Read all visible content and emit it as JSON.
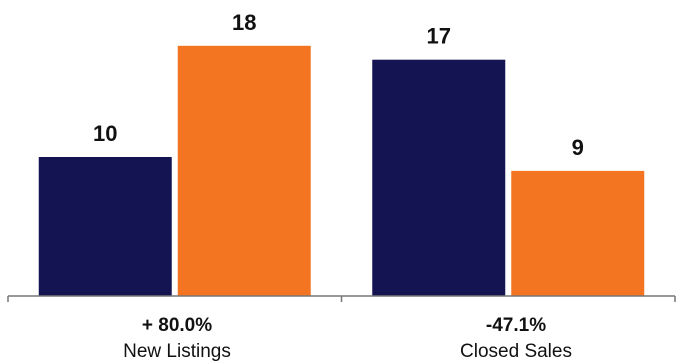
{
  "chart_data": {
    "type": "bar",
    "categories": [
      "New Listings",
      "Closed Sales"
    ],
    "change_labels": [
      "+ 80.0%",
      "-47.1%"
    ],
    "series": [
      {
        "values": [
          10,
          17
        ],
        "color": "#141452"
      },
      {
        "values": [
          18,
          9
        ],
        "color": "#f47521"
      }
    ],
    "ylim": [
      0,
      20
    ],
    "grid": false,
    "legend": "none"
  }
}
